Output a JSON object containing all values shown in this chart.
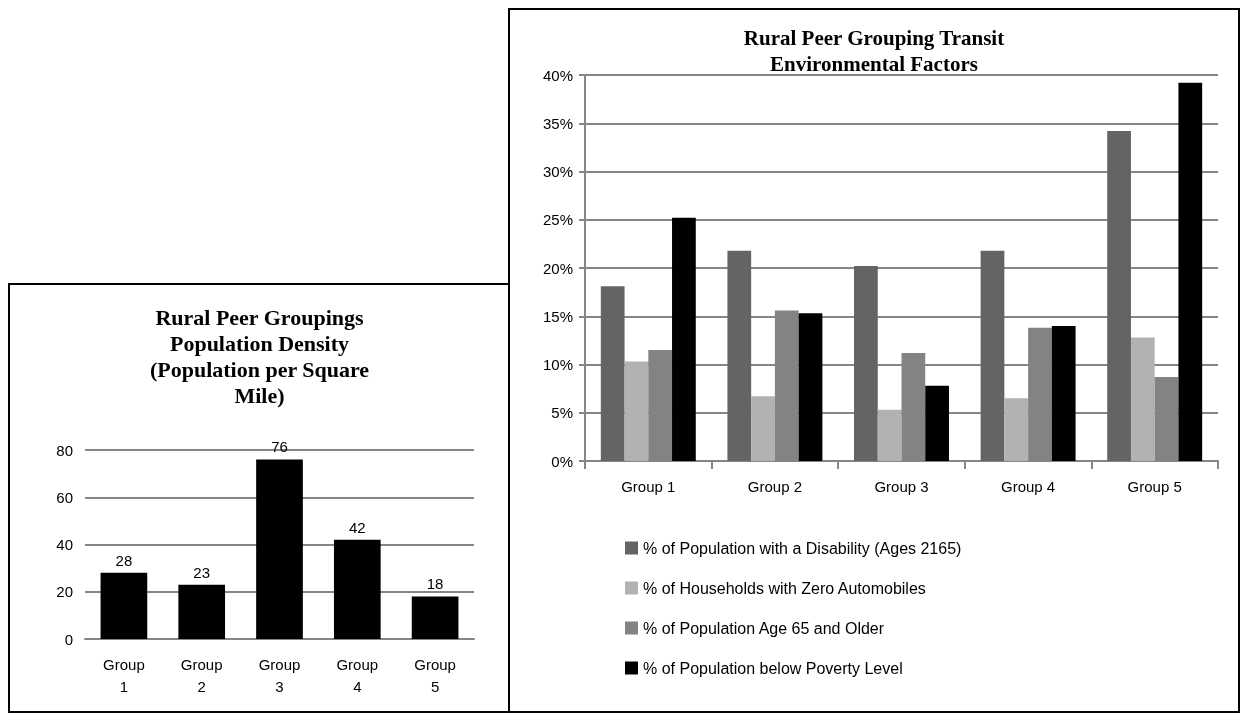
{
  "chart_data": [
    {
      "type": "bar",
      "title": "Rural Peer Groupings\nPopulation Density\n(Population per Square\nMile)",
      "categories": [
        "Group\n1",
        "Group\n2",
        "Group\n3",
        "Group\n4",
        "Group\n5"
      ],
      "values": [
        28,
        23,
        76,
        42,
        18
      ],
      "color": "#000000",
      "ylim": [
        0,
        80
      ],
      "yticks": [
        0,
        20,
        40,
        60,
        80
      ],
      "grid": "y",
      "data_labels": true,
      "legend": false
    },
    {
      "type": "bar",
      "title": "Rural Peer Grouping Transit\nEnvironmental Factors",
      "categories": [
        "Group 1",
        "Group 2",
        "Group 3",
        "Group 4",
        "Group 5"
      ],
      "series": [
        {
          "name": "% of Population with a Disability (Ages 2165)",
          "color": "#646464",
          "values": [
            18.1,
            21.8,
            20.2,
            21.8,
            34.2
          ]
        },
        {
          "name": "% of Households with Zero Automobiles",
          "color": "#b2b2b2",
          "values": [
            10.3,
            6.7,
            5.3,
            6.5,
            12.8
          ]
        },
        {
          "name": "% of Population Age 65 and Older",
          "color": "#838383",
          "values": [
            11.5,
            15.6,
            11.2,
            13.8,
            8.7
          ]
        },
        {
          "name": "% of Population below Poverty Level",
          "color": "#000000",
          "values": [
            25.2,
            15.3,
            7.8,
            14.0,
            39.2
          ]
        }
      ],
      "ylim": [
        0,
        40
      ],
      "yticks": [
        {
          "value": 0,
          "label": "0%"
        },
        {
          "value": 5,
          "label": "5%"
        },
        {
          "value": 10,
          "label": "10%"
        },
        {
          "value": 15,
          "label": "15%"
        },
        {
          "value": 20,
          "label": "20%"
        },
        {
          "value": 25,
          "label": "25%"
        },
        {
          "value": 30,
          "label": "30%"
        },
        {
          "value": 35,
          "label": "35%"
        },
        {
          "value": 40,
          "label": "40%"
        }
      ],
      "grid": "y",
      "legend": "bottom"
    }
  ]
}
